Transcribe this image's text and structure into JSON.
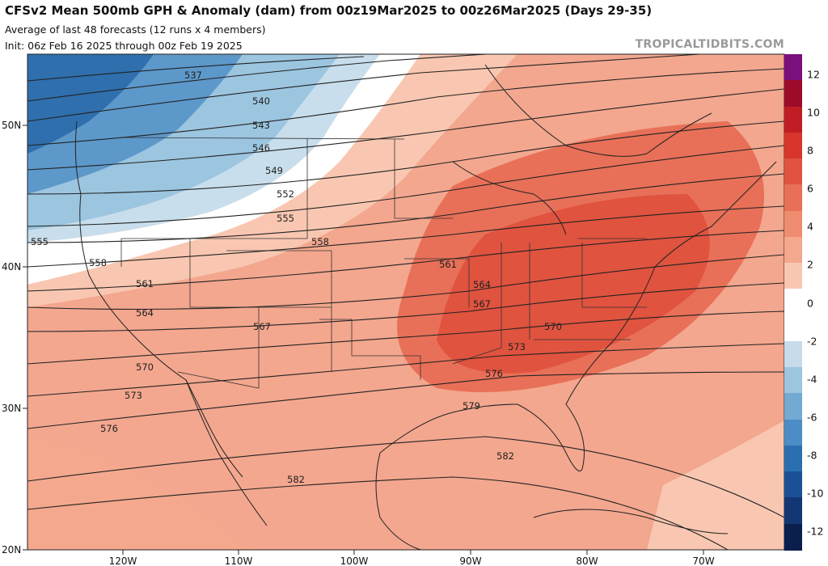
{
  "header": {
    "title": "CFSv2 Mean 500mb GPH & Anomaly (dam) from 00z19Mar2025 to 00z26Mar2025 (Days 29-35)",
    "subtitle_line1": "Average of last 48 forecasts (12 runs x 4 members)",
    "subtitle_line2": "Init: 06z Feb 16 2025 through 00z Feb 19 2025",
    "credit": "TROPICALTIDBITS.COM"
  },
  "map": {
    "lat_labels": [
      "50N",
      "40N",
      "30N",
      "20N"
    ],
    "lon_labels": [
      "120W",
      "110W",
      "100W",
      "90W",
      "80W",
      "70W"
    ],
    "contour_labels": [
      "537",
      "540",
      "543",
      "546",
      "549",
      "552",
      "555",
      "555",
      "558",
      "558",
      "561",
      "561",
      "564",
      "564",
      "567",
      "567",
      "570",
      "570",
      "573",
      "573",
      "576",
      "576",
      "579",
      "582",
      "582"
    ]
  },
  "colorbar": {
    "labels": [
      "12",
      "10",
      "8",
      "6",
      "4",
      "2",
      "0",
      "-2",
      "-4",
      "-6",
      "-8",
      "-10",
      "-12"
    ],
    "colors": [
      "#7b0f7c",
      "#9c0b2a",
      "#c01e24",
      "#d8362d",
      "#e0533f",
      "#e87058",
      "#ef8b6e",
      "#f4a88d",
      "#f9c7b1",
      "#ffffff",
      "#ffffff",
      "#c6dcec",
      "#9cc5e0",
      "#72aad3",
      "#4b8dc4",
      "#2b6fb0",
      "#1b5096",
      "#133775",
      "#0b1f4d"
    ]
  },
  "icons": [
    "contour-line",
    "state-border",
    "coastline"
  ]
}
